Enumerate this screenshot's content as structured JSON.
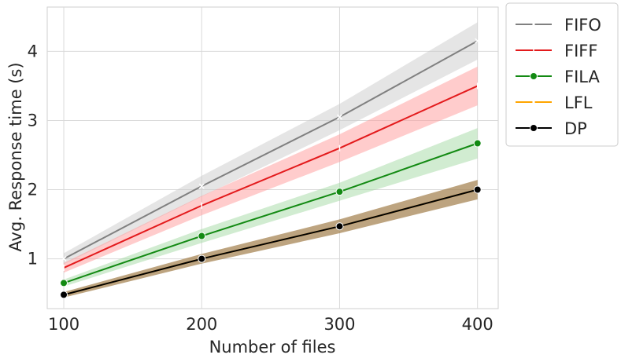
{
  "chart_data": {
    "type": "line",
    "title": "",
    "xlabel": "Number of files",
    "ylabel": "Avg. Response time (s)",
    "x": [
      100,
      200,
      300,
      400
    ],
    "x_ticks": [
      "100",
      "200",
      "300",
      "400"
    ],
    "y_ticks": [
      "1",
      "2",
      "3",
      "4"
    ],
    "xlim": [
      88,
      415
    ],
    "ylim": [
      0.28,
      4.64
    ],
    "grid": true,
    "legend_position": "outside-right",
    "series": [
      {
        "name": "FIFO",
        "color": "#808080",
        "band_color": "#cccccc",
        "marker": "x",
        "dashed": true,
        "values": [
          1.0,
          2.05,
          3.05,
          4.15
        ],
        "lower": [
          0.92,
          1.9,
          2.86,
          3.88
        ],
        "upper": [
          1.08,
          2.2,
          3.24,
          4.42
        ]
      },
      {
        "name": "FIFF",
        "color": "#e31a1c",
        "band_color": "#ff9a9a",
        "marker": "tick",
        "values": [
          0.87,
          1.77,
          2.6,
          3.5
        ],
        "lower": [
          0.8,
          1.63,
          2.4,
          3.22
        ],
        "upper": [
          0.94,
          1.91,
          2.8,
          3.78
        ]
      },
      {
        "name": "FILA",
        "color": "#138a13",
        "band_color": "#a3d9a3",
        "marker": "circle",
        "values": [
          0.65,
          1.33,
          1.97,
          2.67
        ],
        "lower": [
          0.6,
          1.23,
          1.84,
          2.45
        ],
        "upper": [
          0.7,
          1.43,
          2.1,
          2.89
        ]
      },
      {
        "name": "LFL",
        "color": "#ffa500",
        "band_color": "#f3c87a",
        "marker": "x",
        "dashed": true,
        "values": [
          0.48,
          1.0,
          1.47,
          2.0
        ],
        "lower": [
          0.44,
          0.93,
          1.37,
          1.86
        ],
        "upper": [
          0.52,
          1.07,
          1.57,
          2.14
        ]
      },
      {
        "name": "DP",
        "color": "#000000",
        "band_color": "#8b6a3e",
        "marker": "circle",
        "values": [
          0.48,
          1.0,
          1.47,
          2.0
        ],
        "lower": [
          0.44,
          0.93,
          1.37,
          1.86
        ],
        "upper": [
          0.52,
          1.07,
          1.57,
          2.14
        ]
      }
    ]
  }
}
